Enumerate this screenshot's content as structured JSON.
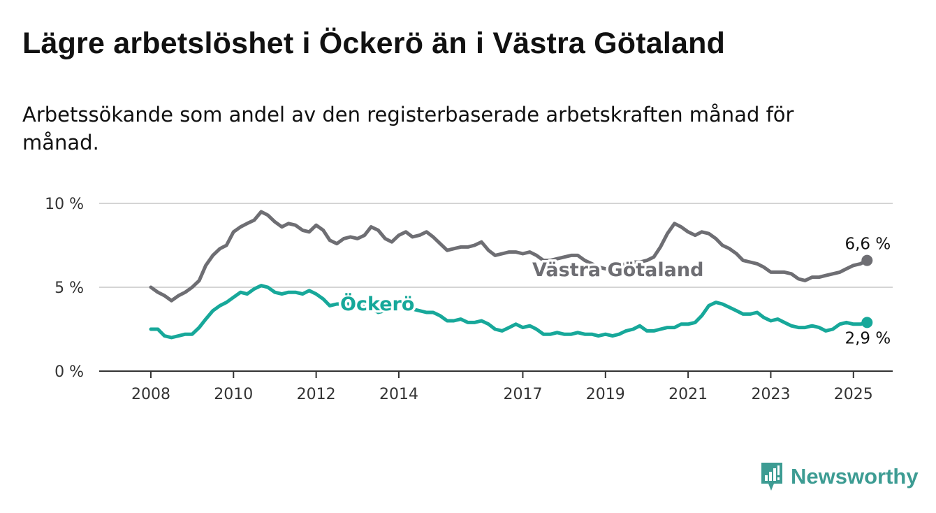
{
  "header": {
    "title": "Lägre arbetslöshet i Öckerö än i Västra Götaland",
    "subtitle": "Arbetssökande som andel av den registerbaserade arbetskraften månad för månad."
  },
  "brand": {
    "name": "Newsworthy",
    "color": "#3d9c93"
  },
  "chart_data": {
    "type": "line",
    "x_ticks": [
      "2008",
      "2010",
      "2012",
      "2014",
      "2017",
      "2019",
      "2021",
      "2023",
      "2025"
    ],
    "y_ticks": [
      "0 %",
      "5 %",
      "10 %"
    ],
    "ylim": [
      0,
      10
    ],
    "xlim": [
      2006.75,
      2025.95
    ],
    "grid": true,
    "series": [
      {
        "name": "Västra Götaland",
        "color": "#6e6e73",
        "end_label": "6,6 %",
        "points": [
          [
            2008.0,
            5.0
          ],
          [
            2008.17,
            4.7
          ],
          [
            2008.33,
            4.5
          ],
          [
            2008.5,
            4.2
          ],
          [
            2008.67,
            4.5
          ],
          [
            2008.83,
            4.7
          ],
          [
            2009.0,
            5.0
          ],
          [
            2009.17,
            5.4
          ],
          [
            2009.33,
            6.3
          ],
          [
            2009.5,
            6.9
          ],
          [
            2009.67,
            7.3
          ],
          [
            2009.83,
            7.5
          ],
          [
            2010.0,
            8.3
          ],
          [
            2010.17,
            8.6
          ],
          [
            2010.33,
            8.8
          ],
          [
            2010.5,
            9.0
          ],
          [
            2010.67,
            9.5
          ],
          [
            2010.83,
            9.3
          ],
          [
            2011.0,
            8.9
          ],
          [
            2011.17,
            8.6
          ],
          [
            2011.33,
            8.8
          ],
          [
            2011.5,
            8.7
          ],
          [
            2011.67,
            8.4
          ],
          [
            2011.83,
            8.3
          ],
          [
            2012.0,
            8.7
          ],
          [
            2012.17,
            8.4
          ],
          [
            2012.33,
            7.8
          ],
          [
            2012.5,
            7.6
          ],
          [
            2012.67,
            7.9
          ],
          [
            2012.83,
            8.0
          ],
          [
            2013.0,
            7.9
          ],
          [
            2013.17,
            8.1
          ],
          [
            2013.33,
            8.6
          ],
          [
            2013.5,
            8.4
          ],
          [
            2013.67,
            7.9
          ],
          [
            2013.83,
            7.7
          ],
          [
            2014.0,
            8.1
          ],
          [
            2014.17,
            8.3
          ],
          [
            2014.33,
            8.0
          ],
          [
            2014.5,
            8.1
          ],
          [
            2014.67,
            8.3
          ],
          [
            2014.83,
            8.0
          ],
          [
            2015.0,
            7.6
          ],
          [
            2015.17,
            7.2
          ],
          [
            2015.33,
            7.3
          ],
          [
            2015.5,
            7.4
          ],
          [
            2015.67,
            7.4
          ],
          [
            2015.83,
            7.5
          ],
          [
            2016.0,
            7.7
          ],
          [
            2016.17,
            7.2
          ],
          [
            2016.33,
            6.9
          ],
          [
            2016.5,
            7.0
          ],
          [
            2016.67,
            7.1
          ],
          [
            2016.83,
            7.1
          ],
          [
            2017.0,
            7.0
          ],
          [
            2017.17,
            7.1
          ],
          [
            2017.33,
            6.9
          ],
          [
            2017.5,
            6.6
          ],
          [
            2017.67,
            6.6
          ],
          [
            2017.83,
            6.7
          ],
          [
            2018.0,
            6.8
          ],
          [
            2018.17,
            6.9
          ],
          [
            2018.33,
            6.9
          ],
          [
            2018.5,
            6.6
          ],
          [
            2018.67,
            6.4
          ],
          [
            2018.83,
            6.2
          ],
          [
            2019.0,
            6.1
          ],
          [
            2019.17,
            6.2
          ],
          [
            2019.33,
            6.3
          ],
          [
            2019.5,
            6.4
          ],
          [
            2019.67,
            6.5
          ],
          [
            2019.83,
            6.5
          ],
          [
            2020.0,
            6.6
          ],
          [
            2020.17,
            6.8
          ],
          [
            2020.33,
            7.4
          ],
          [
            2020.5,
            8.2
          ],
          [
            2020.67,
            8.8
          ],
          [
            2020.83,
            8.6
          ],
          [
            2021.0,
            8.3
          ],
          [
            2021.17,
            8.1
          ],
          [
            2021.33,
            8.3
          ],
          [
            2021.5,
            8.2
          ],
          [
            2021.67,
            7.9
          ],
          [
            2021.83,
            7.5
          ],
          [
            2022.0,
            7.3
          ],
          [
            2022.17,
            7.0
          ],
          [
            2022.33,
            6.6
          ],
          [
            2022.5,
            6.5
          ],
          [
            2022.67,
            6.4
          ],
          [
            2022.83,
            6.2
          ],
          [
            2023.0,
            5.9
          ],
          [
            2023.17,
            5.9
          ],
          [
            2023.33,
            5.9
          ],
          [
            2023.5,
            5.8
          ],
          [
            2023.67,
            5.5
          ],
          [
            2023.83,
            5.4
          ],
          [
            2024.0,
            5.6
          ],
          [
            2024.17,
            5.6
          ],
          [
            2024.33,
            5.7
          ],
          [
            2024.5,
            5.8
          ],
          [
            2024.67,
            5.9
          ],
          [
            2024.83,
            6.1
          ],
          [
            2025.0,
            6.3
          ],
          [
            2025.17,
            6.4
          ],
          [
            2025.33,
            6.6
          ]
        ]
      },
      {
        "name": "Öckerö",
        "color": "#17a89a",
        "end_label": "2,9 %",
        "points": [
          [
            2008.0,
            2.5
          ],
          [
            2008.17,
            2.5
          ],
          [
            2008.33,
            2.1
          ],
          [
            2008.5,
            2.0
          ],
          [
            2008.67,
            2.1
          ],
          [
            2008.83,
            2.2
          ],
          [
            2009.0,
            2.2
          ],
          [
            2009.17,
            2.6
          ],
          [
            2009.33,
            3.1
          ],
          [
            2009.5,
            3.6
          ],
          [
            2009.67,
            3.9
          ],
          [
            2009.83,
            4.1
          ],
          [
            2010.0,
            4.4
          ],
          [
            2010.17,
            4.7
          ],
          [
            2010.33,
            4.6
          ],
          [
            2010.5,
            4.9
          ],
          [
            2010.67,
            5.1
          ],
          [
            2010.83,
            5.0
          ],
          [
            2011.0,
            4.7
          ],
          [
            2011.17,
            4.6
          ],
          [
            2011.33,
            4.7
          ],
          [
            2011.5,
            4.7
          ],
          [
            2011.67,
            4.6
          ],
          [
            2011.83,
            4.8
          ],
          [
            2012.0,
            4.6
          ],
          [
            2012.17,
            4.3
          ],
          [
            2012.33,
            3.9
          ],
          [
            2012.5,
            4.0
          ],
          [
            2012.67,
            4.0
          ],
          [
            2012.83,
            4.0
          ],
          [
            2013.0,
            4.1
          ],
          [
            2013.17,
            4.0
          ],
          [
            2013.33,
            3.8
          ],
          [
            2013.5,
            3.5
          ],
          [
            2013.67,
            3.6
          ],
          [
            2013.83,
            3.7
          ],
          [
            2014.0,
            4.2
          ],
          [
            2014.17,
            3.9
          ],
          [
            2014.33,
            3.7
          ],
          [
            2014.5,
            3.6
          ],
          [
            2014.67,
            3.5
          ],
          [
            2014.83,
            3.5
          ],
          [
            2015.0,
            3.3
          ],
          [
            2015.17,
            3.0
          ],
          [
            2015.33,
            3.0
          ],
          [
            2015.5,
            3.1
          ],
          [
            2015.67,
            2.9
          ],
          [
            2015.83,
            2.9
          ],
          [
            2016.0,
            3.0
          ],
          [
            2016.17,
            2.8
          ],
          [
            2016.33,
            2.5
          ],
          [
            2016.5,
            2.4
          ],
          [
            2016.67,
            2.6
          ],
          [
            2016.83,
            2.8
          ],
          [
            2017.0,
            2.6
          ],
          [
            2017.17,
            2.7
          ],
          [
            2017.33,
            2.5
          ],
          [
            2017.5,
            2.2
          ],
          [
            2017.67,
            2.2
          ],
          [
            2017.83,
            2.3
          ],
          [
            2018.0,
            2.2
          ],
          [
            2018.17,
            2.2
          ],
          [
            2018.33,
            2.3
          ],
          [
            2018.5,
            2.2
          ],
          [
            2018.67,
            2.2
          ],
          [
            2018.83,
            2.1
          ],
          [
            2019.0,
            2.2
          ],
          [
            2019.17,
            2.1
          ],
          [
            2019.33,
            2.2
          ],
          [
            2019.5,
            2.4
          ],
          [
            2019.67,
            2.5
          ],
          [
            2019.83,
            2.7
          ],
          [
            2020.0,
            2.4
          ],
          [
            2020.17,
            2.4
          ],
          [
            2020.33,
            2.5
          ],
          [
            2020.5,
            2.6
          ],
          [
            2020.67,
            2.6
          ],
          [
            2020.83,
            2.8
          ],
          [
            2021.0,
            2.8
          ],
          [
            2021.17,
            2.9
          ],
          [
            2021.33,
            3.3
          ],
          [
            2021.5,
            3.9
          ],
          [
            2021.67,
            4.1
          ],
          [
            2021.83,
            4.0
          ],
          [
            2022.0,
            3.8
          ],
          [
            2022.17,
            3.6
          ],
          [
            2022.33,
            3.4
          ],
          [
            2022.5,
            3.4
          ],
          [
            2022.67,
            3.5
          ],
          [
            2022.83,
            3.2
          ],
          [
            2023.0,
            3.0
          ],
          [
            2023.17,
            3.1
          ],
          [
            2023.33,
            2.9
          ],
          [
            2023.5,
            2.7
          ],
          [
            2023.67,
            2.6
          ],
          [
            2023.83,
            2.6
          ],
          [
            2024.0,
            2.7
          ],
          [
            2024.17,
            2.6
          ],
          [
            2024.33,
            2.4
          ],
          [
            2024.5,
            2.5
          ],
          [
            2024.67,
            2.8
          ],
          [
            2024.83,
            2.9
          ],
          [
            2025.0,
            2.8
          ],
          [
            2025.17,
            2.8
          ],
          [
            2025.33,
            2.9
          ]
        ]
      }
    ]
  }
}
